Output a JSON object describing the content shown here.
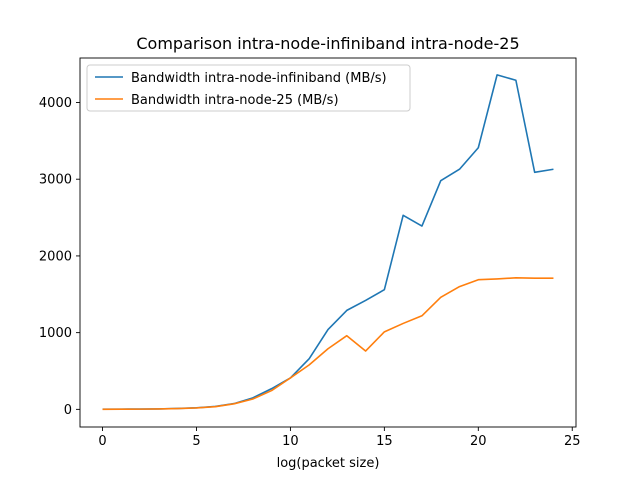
{
  "chart_data": {
    "type": "line",
    "title": "Comparison intra-node-infiniband intra-node-25",
    "xlabel": "log(packet size)",
    "ylabel": "",
    "xlim": [
      -1.2,
      25.2
    ],
    "ylim": [
      -230,
      4580
    ],
    "xticks": [
      0,
      5,
      10,
      15,
      20,
      25
    ],
    "yticks": [
      0,
      1000,
      2000,
      3000,
      4000
    ],
    "grid": false,
    "legend_position": "upper-left",
    "x": [
      0,
      1,
      2,
      3,
      4,
      5,
      6,
      7,
      8,
      9,
      10,
      11,
      12,
      13,
      14,
      15,
      16,
      17,
      18,
      19,
      20,
      21,
      22,
      23,
      24
    ],
    "series": [
      {
        "name": "Bandwidth intra-node-infiniband (MB/s)",
        "color": "#1f77b4",
        "values": [
          2,
          3,
          4,
          6,
          12,
          20,
          38,
          75,
          150,
          270,
          410,
          660,
          1040,
          1290,
          1420,
          1560,
          2530,
          2390,
          2980,
          3130,
          3410,
          4360,
          4290,
          3090,
          3130
        ]
      },
      {
        "name": "Bandwidth intra-node-25 (MB/s)",
        "color": "#ff7f0e",
        "values": [
          1,
          2,
          3,
          5,
          10,
          18,
          35,
          72,
          135,
          245,
          410,
          580,
          790,
          960,
          760,
          1010,
          1120,
          1220,
          1460,
          1600,
          1690,
          1700,
          1715,
          1710,
          1710
        ]
      }
    ]
  }
}
